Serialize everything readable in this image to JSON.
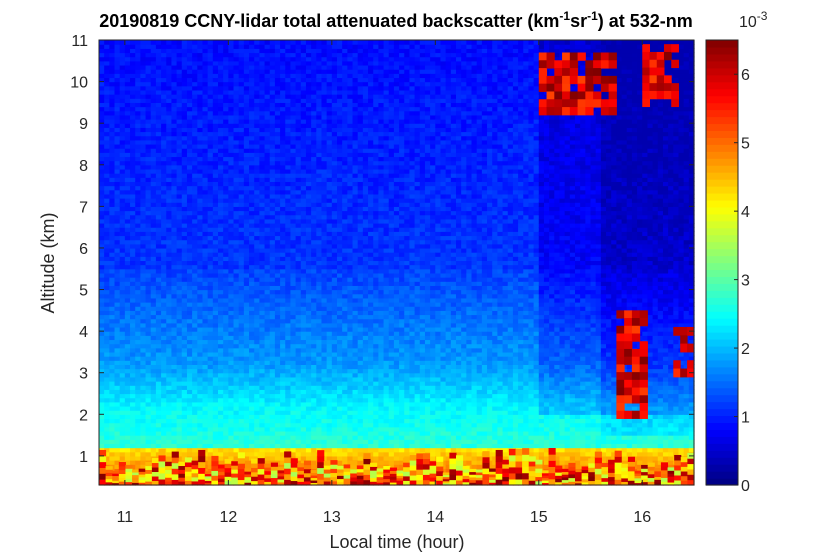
{
  "chart_data": {
    "type": "heatmap",
    "title": {
      "prefix": "20190819 CCNY-lidar total attenuated backscatter (km",
      "exp1": "-1",
      "mid": "sr",
      "exp2": "-1",
      "suffix": ") at 532-nm"
    },
    "xlabel": "Local time (hour)",
    "ylabel": "Altitude (km)",
    "xlim": [
      10.75,
      16.5
    ],
    "ylim": [
      0.3,
      11
    ],
    "x_ticks": [
      "11",
      "12",
      "13",
      "14",
      "15",
      "16"
    ],
    "y_ticks": [
      "1",
      "2",
      "3",
      "4",
      "5",
      "6",
      "7",
      "8",
      "9",
      "10",
      "11"
    ],
    "colorbar": {
      "colormap": "jet",
      "range": [
        0,
        0.0065
      ],
      "tick_labels": [
        "0",
        "1",
        "2",
        "3",
        "4",
        "5",
        "6"
      ],
      "scale_base": "10",
      "scale_exponent": "-3"
    },
    "features": [
      {
        "feature": "boundary layer aerosol",
        "x_range": [
          10.75,
          16.5
        ],
        "altitude_range": [
          0.3,
          1.2
        ],
        "value_range_1e-3": [
          3.5,
          6.5
        ]
      },
      {
        "feature": "residual aerosol layer",
        "x_range": [
          10.75,
          16.5
        ],
        "altitude_range": [
          1.2,
          3.0
        ],
        "value_range_1e-3": [
          2.0,
          3.0
        ]
      },
      {
        "feature": "cirrus cloud",
        "x_range": [
          15.0,
          15.75
        ],
        "altitude_range": [
          9.2,
          10.7
        ],
        "value_range_1e-3": [
          5.0,
          6.5
        ]
      },
      {
        "feature": "cirrus cloud",
        "x_range": [
          16.0,
          16.35
        ],
        "altitude_range": [
          9.4,
          10.9
        ],
        "value_range_1e-3": [
          5.0,
          6.5
        ]
      },
      {
        "feature": "low cloud",
        "x_range": [
          15.75,
          16.05
        ],
        "altitude_range": [
          1.9,
          4.5
        ],
        "value_range_1e-3": [
          5.0,
          6.5
        ]
      },
      {
        "feature": "low cloud",
        "x_range": [
          16.3,
          16.5
        ],
        "altitude_range": [
          2.9,
          4.1
        ],
        "value_range_1e-3": [
          5.0,
          6.5
        ]
      }
    ]
  }
}
